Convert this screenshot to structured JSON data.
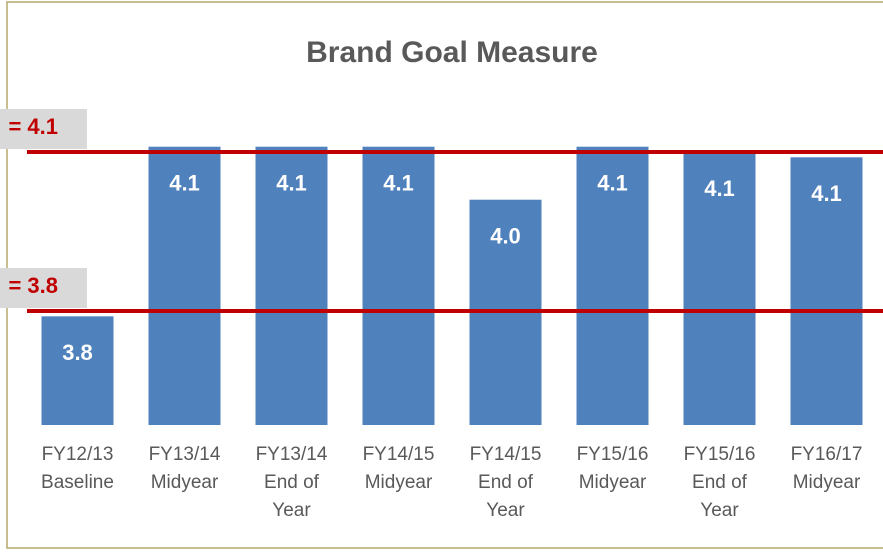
{
  "chart_data": {
    "type": "bar",
    "title": "Brand Goal Measure",
    "categories": [
      [
        "FY12/13",
        "Baseline"
      ],
      [
        "FY13/14",
        "Midyear"
      ],
      [
        "FY13/14",
        "End of",
        "Year"
      ],
      [
        "FY14/15",
        "Midyear"
      ],
      [
        "FY14/15",
        "End of",
        "Year"
      ],
      [
        "FY15/16",
        "Midyear"
      ],
      [
        "FY15/16",
        "End of",
        "Year"
      ],
      [
        "FY16/17",
        "Midyear"
      ]
    ],
    "values": [
      3.79,
      4.11,
      4.11,
      4.11,
      4.01,
      4.11,
      4.1,
      4.09
    ],
    "value_labels": [
      "3.8",
      "4.1",
      "4.1",
      "4.1",
      "4.0",
      "4.1",
      "4.1",
      "4.1"
    ],
    "color": "#4f81bd",
    "ylim": [
      3.585,
      4.2
    ],
    "reference_lines": [
      {
        "value": 4.1,
        "label": "= 4.1",
        "color": "#c00000"
      },
      {
        "value": 3.8,
        "label": "= 3.8",
        "color": "#c00000"
      }
    ]
  }
}
